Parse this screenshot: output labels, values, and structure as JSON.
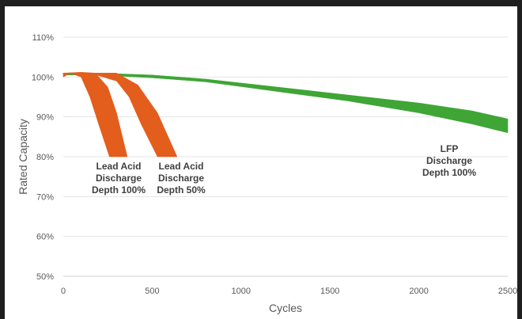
{
  "chart_data": {
    "type": "area",
    "title": "",
    "xlabel": "Cycles",
    "ylabel": "Rated Capacity",
    "xlim": [
      0,
      2500
    ],
    "ylim": [
      50,
      110
    ],
    "x_ticks": [
      0,
      500,
      1000,
      1500,
      2000,
      2500
    ],
    "x_tick_labels": [
      "0",
      "500",
      "1000",
      "1500",
      "2000",
      "2500"
    ],
    "y_ticks": [
      50,
      60,
      70,
      80,
      90,
      100,
      110
    ],
    "y_tick_labels": [
      "50%",
      "60%",
      "70%",
      "80%",
      "90%",
      "100%",
      "110%"
    ],
    "grid": "horizontal",
    "legend": "none",
    "series": [
      {
        "key": "lfp",
        "color": "#3fa535",
        "upper": [
          [
            0,
            101
          ],
          [
            200,
            101
          ],
          [
            500,
            100.5
          ],
          [
            800,
            99.5
          ],
          [
            1000,
            98.5
          ],
          [
            1300,
            97
          ],
          [
            1600,
            95.5
          ],
          [
            2000,
            93.5
          ],
          [
            2300,
            91.5
          ],
          [
            2500,
            89.5
          ]
        ],
        "lower": [
          [
            0,
            100.5
          ],
          [
            200,
            100.5
          ],
          [
            500,
            99.8
          ],
          [
            800,
            98.8
          ],
          [
            1000,
            97.6
          ],
          [
            1300,
            95.8
          ],
          [
            1600,
            94
          ],
          [
            2000,
            91
          ],
          [
            2300,
            88.2
          ],
          [
            2500,
            86
          ]
        ]
      },
      {
        "key": "lead_acid_100",
        "color": "#e35d1c",
        "upper": [
          [
            0,
            101
          ],
          [
            100,
            101.2
          ],
          [
            180,
            101
          ],
          [
            250,
            97.5
          ],
          [
            300,
            91
          ],
          [
            360,
            80
          ]
        ],
        "lower": [
          [
            0,
            100
          ],
          [
            40,
            101
          ],
          [
            100,
            100
          ],
          [
            150,
            95
          ],
          [
            200,
            88
          ],
          [
            260,
            80
          ]
        ]
      },
      {
        "key": "lead_acid_50",
        "color": "#e35d1c",
        "upper": [
          [
            150,
            101
          ],
          [
            300,
            101
          ],
          [
            420,
            98
          ],
          [
            530,
            91
          ],
          [
            640,
            80
          ]
        ],
        "lower": [
          [
            150,
            101
          ],
          [
            300,
            99
          ],
          [
            370,
            95
          ],
          [
            440,
            88
          ],
          [
            530,
            80
          ]
        ]
      }
    ],
    "annotations": [
      {
        "key": "lead_acid_100",
        "lines": [
          "Lead Acid",
          "Discharge",
          "Depth 100%"
        ]
      },
      {
        "key": "lead_acid_50",
        "lines": [
          "Lead Acid",
          "Discharge",
          "Depth 50%"
        ]
      },
      {
        "key": "lfp",
        "lines": [
          "LFP",
          "Discharge",
          "Depth 100%"
        ]
      }
    ]
  }
}
